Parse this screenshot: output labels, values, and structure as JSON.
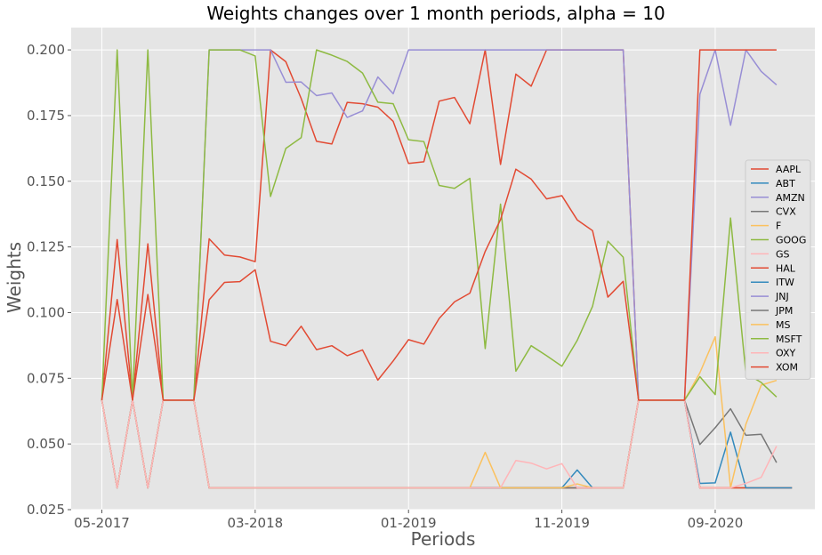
{
  "chart_data": {
    "type": "line",
    "title": "Weights changes over 1 month periods, alpha = 10",
    "xlabel": "Periods",
    "ylabel": "Weights",
    "x_tick_labels": [
      "05-2017",
      "03-2018",
      "01-2019",
      "11-2019",
      "09-2020"
    ],
    "x_tick_positions": [
      0,
      10,
      20,
      30,
      40
    ],
    "xlim": [
      -2,
      46.5
    ],
    "ylim": [
      0.025,
      0.2085
    ],
    "y_ticks": [
      0.025,
      0.05,
      0.075,
      0.1,
      0.125,
      0.15,
      0.175,
      0.2
    ],
    "y_tick_labels": [
      "0.025",
      "0.050",
      "0.075",
      "0.100",
      "0.125",
      "0.150",
      "0.175",
      "0.200"
    ],
    "grid": true,
    "legend_position": "center-right",
    "background": "#e5e5e5",
    "x": [
      0,
      1,
      2,
      3,
      4,
      5,
      6,
      7,
      8,
      9,
      10,
      11,
      12,
      13,
      14,
      15,
      16,
      17,
      18,
      19,
      20,
      21,
      22,
      23,
      24,
      25,
      26,
      27,
      28,
      29,
      30,
      31,
      32,
      33,
      34,
      35,
      36,
      37,
      38,
      39,
      40,
      41,
      42,
      43,
      44,
      45
    ],
    "series": [
      {
        "name": "AAPL",
        "color": "#E24A33",
        "values": [
          0.0667,
          0.1278,
          0.0667,
          0.1262,
          0.0667,
          0.0667,
          0.0667,
          0.1281,
          0.1219,
          0.1212,
          0.1194,
          0.2,
          0.1955,
          0.1815,
          0.1652,
          0.1642,
          0.18,
          0.1795,
          0.1782,
          0.1728,
          0.1568,
          0.1574,
          0.1805,
          0.1819,
          0.1719,
          0.2,
          0.1564,
          0.1908,
          0.1862,
          0.2,
          0.2,
          0.2,
          0.2,
          0.2,
          0.2,
          0.0667,
          0.0667,
          0.0667,
          0.0667,
          0.0333,
          0.0333,
          0.0333,
          0.0333,
          0.0333,
          0.0333,
          0.0333
        ]
      },
      {
        "name": "ABT",
        "color": "#348ABD",
        "values": [
          0.0667,
          0.0333,
          0.0667,
          0.0333,
          0.0667,
          0.0667,
          0.0667,
          0.0333,
          0.0333,
          0.0333,
          0.0333,
          0.0333,
          0.0333,
          0.0333,
          0.0333,
          0.0333,
          0.0333,
          0.0333,
          0.0333,
          0.0333,
          0.0333,
          0.0333,
          0.0333,
          0.0333,
          0.0333,
          0.0333,
          0.0333,
          0.0333,
          0.0333,
          0.0333,
          0.0333,
          0.0333,
          0.0333,
          0.0333,
          0.0333,
          0.0667,
          0.0667,
          0.0667,
          0.0667,
          0.0333,
          0.0333,
          0.0333,
          0.0333,
          0.0333,
          0.0333,
          0.0333
        ]
      },
      {
        "name": "AMZN",
        "color": "#988ED5",
        "values": [
          0.0667,
          0.0333,
          0.0667,
          0.0333,
          0.0667,
          0.0667,
          0.0667,
          0.0333,
          0.0333,
          0.0333,
          0.0333,
          0.0333,
          0.0333,
          0.0333,
          0.0333,
          0.0333,
          0.0333,
          0.0333,
          0.0333,
          0.0333,
          0.0333,
          0.0333,
          0.0333,
          0.0333,
          0.0333,
          0.0333,
          0.0333,
          0.0333,
          0.0333,
          0.0333,
          0.0333,
          0.0333,
          0.0333,
          0.0333,
          0.0333,
          0.0667,
          0.0667,
          0.0667,
          0.0667,
          0.0333,
          0.0333,
          0.0333,
          0.0333,
          0.0333,
          0.0333,
          0.0333
        ]
      },
      {
        "name": "CVX",
        "color": "#777777",
        "values": [
          0.0667,
          0.0333,
          0.0667,
          0.0333,
          0.0667,
          0.0667,
          0.0667,
          0.0333,
          0.0333,
          0.0333,
          0.0333,
          0.0333,
          0.0333,
          0.0333,
          0.0333,
          0.0333,
          0.0333,
          0.0333,
          0.0333,
          0.0333,
          0.0333,
          0.0333,
          0.0333,
          0.0333,
          0.0333,
          0.0333,
          0.0333,
          0.0333,
          0.0333,
          0.0333,
          0.0333,
          0.0333,
          0.0333,
          0.0333,
          0.0333,
          0.0667,
          0.0667,
          0.0667,
          0.0667,
          0.0333,
          0.0333,
          0.0333,
          0.0333,
          0.0333,
          0.0333,
          0.0333
        ]
      },
      {
        "name": "F",
        "color": "#FBC15E",
        "values": [
          0.0667,
          0.0333,
          0.0667,
          0.0333,
          0.0667,
          0.0667,
          0.0667,
          0.0333,
          0.0333,
          0.0333,
          0.0333,
          0.0333,
          0.0333,
          0.0333,
          0.0333,
          0.0333,
          0.0333,
          0.0333,
          0.0333,
          0.0333,
          0.0333,
          0.0333,
          0.0333,
          0.0333,
          0.0333,
          0.0333,
          0.0333,
          0.0333,
          0.0333,
          0.0333,
          0.0333,
          0.0333,
          0.0333,
          0.0333,
          0.0333,
          0.0667,
          0.0667,
          0.0667,
          0.0667,
          0.0333,
          0.0333,
          0.0333,
          0.0333,
          0.0333,
          0.0333,
          0.0333
        ]
      },
      {
        "name": "GOOG",
        "color": "#8EBA42",
        "values": [
          0.0667,
          0.0333,
          0.0667,
          0.0333,
          0.0667,
          0.0667,
          0.0667,
          0.0333,
          0.0333,
          0.0333,
          0.0333,
          0.0333,
          0.0333,
          0.0333,
          0.0333,
          0.0333,
          0.0333,
          0.0333,
          0.0333,
          0.0333,
          0.0333,
          0.0333,
          0.0333,
          0.0333,
          0.0333,
          0.0333,
          0.0333,
          0.0333,
          0.0333,
          0.0333,
          0.0333,
          0.0333,
          0.0333,
          0.0333,
          0.0333,
          0.0667,
          0.0667,
          0.0667,
          0.0667,
          0.0333,
          0.0333,
          0.0333,
          0.0333,
          0.0333,
          0.0333,
          0.0333
        ]
      },
      {
        "name": "GS",
        "color": "#FFB5B8",
        "values": [
          0.0667,
          0.0333,
          0.0667,
          0.0333,
          0.0667,
          0.0667,
          0.0667,
          0.0333,
          0.0333,
          0.0333,
          0.0333,
          0.0333,
          0.0333,
          0.0333,
          0.0333,
          0.0333,
          0.0333,
          0.0333,
          0.0333,
          0.0333,
          0.0333,
          0.0333,
          0.0333,
          0.0333,
          0.0333,
          0.0333,
          0.0333,
          0.0333,
          0.0333,
          0.0333,
          0.0333,
          0.0333,
          0.0333,
          0.0333,
          0.0333,
          0.0667,
          0.0667,
          0.0667,
          0.0667,
          0.0333,
          0.0333,
          0.0333,
          0.0333,
          0.0333,
          0.0333,
          0.0333
        ]
      },
      {
        "name": "HAL",
        "color": "#E24A33",
        "values": [
          0.0667,
          0.0333,
          0.0667,
          0.0333,
          0.0667,
          0.0667,
          0.0667,
          0.0333,
          0.0333,
          0.0333,
          0.0333,
          0.0333,
          0.0333,
          0.0333,
          0.0333,
          0.0333,
          0.0333,
          0.0333,
          0.0333,
          0.0333,
          0.0333,
          0.0333,
          0.0333,
          0.0333,
          0.0333,
          0.0333,
          0.0333,
          0.0333,
          0.0333,
          0.0333,
          0.0333,
          0.0333,
          0.0333,
          0.0333,
          0.0333,
          0.0667,
          0.0667,
          0.0667,
          0.0667,
          0.0333,
          0.0333,
          0.0333,
          0.0333,
          0.0333,
          0.0333,
          0.0333
        ]
      },
      {
        "name": "ITW",
        "color": "#348ABD",
        "values": [
          0.0667,
          0.0333,
          0.0667,
          0.0333,
          0.0667,
          0.0667,
          0.0667,
          0.0333,
          0.0333,
          0.0333,
          0.0333,
          0.0333,
          0.0333,
          0.0333,
          0.0333,
          0.0333,
          0.0333,
          0.0333,
          0.0333,
          0.0333,
          0.0333,
          0.0333,
          0.0333,
          0.0333,
          0.0333,
          0.0333,
          0.0333,
          0.0333,
          0.0333,
          0.0333,
          0.0333,
          0.0401,
          0.0333,
          0.0333,
          0.0333,
          0.0667,
          0.0667,
          0.0667,
          0.0667,
          0.035,
          0.0352,
          0.0545,
          0.0333,
          0.0333,
          0.0333,
          0.0333
        ]
      },
      {
        "name": "JNJ",
        "color": "#988ED5",
        "values": [
          0.0667,
          0.0333,
          0.0667,
          0.0333,
          0.0667,
          0.0667,
          0.0667,
          0.2,
          0.2,
          0.2,
          0.2,
          0.2,
          0.1877,
          0.1878,
          0.1826,
          0.1836,
          0.1743,
          0.1768,
          0.1897,
          0.1833,
          0.2,
          0.2,
          0.2,
          0.2,
          0.2,
          0.2,
          0.2,
          0.2,
          0.2,
          0.2,
          0.2,
          0.2,
          0.2,
          0.2,
          0.2,
          0.0667,
          0.0667,
          0.0667,
          0.0667,
          0.1831,
          0.2,
          0.1713,
          0.2,
          0.1918,
          0.1867,
          null
        ]
      },
      {
        "name": "JPM",
        "color": "#777777",
        "values": [
          0.0667,
          0.0333,
          0.0667,
          0.0333,
          0.0667,
          0.0667,
          0.0667,
          0.0333,
          0.0333,
          0.0333,
          0.0333,
          0.0333,
          0.0333,
          0.0333,
          0.0333,
          0.0333,
          0.0333,
          0.0333,
          0.0333,
          0.0333,
          0.0333,
          0.0333,
          0.0333,
          0.0333,
          0.0333,
          0.0333,
          0.0333,
          0.0333,
          0.0333,
          0.0333,
          0.0333,
          0.0333,
          0.0333,
          0.0333,
          0.0333,
          0.0667,
          0.0667,
          0.0667,
          0.0667,
          0.0498,
          0.0562,
          0.0634,
          0.0533,
          0.0537,
          0.0429,
          null
        ]
      },
      {
        "name": "MS",
        "color": "#FBC15E",
        "values": [
          0.0667,
          0.0333,
          0.0667,
          0.0333,
          0.0667,
          0.0667,
          0.0667,
          0.0333,
          0.0333,
          0.0333,
          0.0333,
          0.0333,
          0.0333,
          0.0333,
          0.0333,
          0.0333,
          0.0333,
          0.0333,
          0.0333,
          0.0333,
          0.0333,
          0.0333,
          0.0333,
          0.0333,
          0.0333,
          0.0468,
          0.0333,
          0.0333,
          0.0333,
          0.0333,
          0.0333,
          0.0348,
          0.0333,
          0.0333,
          0.0333,
          0.0667,
          0.0667,
          0.0667,
          0.0667,
          0.0771,
          0.0908,
          0.0333,
          0.0575,
          0.0724,
          0.0742,
          null
        ]
      },
      {
        "name": "MSFT",
        "color": "#8EBA42",
        "values": [
          0.0667,
          0.2,
          0.0667,
          0.2,
          0.0667,
          0.0667,
          0.0667,
          0.2,
          0.2,
          0.2,
          0.1977,
          0.1442,
          0.1625,
          0.1666,
          0.2,
          0.198,
          0.1956,
          0.1912,
          0.1801,
          0.1795,
          0.1658,
          0.1651,
          0.1484,
          0.1473,
          0.1511,
          0.0863,
          0.1413,
          0.0777,
          0.0874,
          0.0836,
          0.0796,
          0.0894,
          0.1024,
          0.1272,
          0.1211,
          0.0667,
          0.0667,
          0.0667,
          0.0667,
          0.0756,
          0.0688,
          0.136,
          0.0769,
          0.0734,
          0.0679,
          null
        ]
      },
      {
        "name": "OXY",
        "color": "#FFB5B8",
        "values": [
          0.0667,
          0.0333,
          0.0667,
          0.0333,
          0.0667,
          0.0667,
          0.0667,
          0.0333,
          0.0333,
          0.0333,
          0.0333,
          0.0333,
          0.0333,
          0.0333,
          0.0333,
          0.0333,
          0.0333,
          0.0333,
          0.0333,
          0.0333,
          0.0333,
          0.0333,
          0.0333,
          0.0333,
          0.0333,
          0.0333,
          0.0333,
          0.0437,
          0.0427,
          0.0405,
          0.0425,
          0.0333,
          0.0333,
          0.0333,
          0.0333,
          0.0667,
          0.0667,
          0.0667,
          0.0667,
          0.0333,
          0.0333,
          0.0333,
          0.035,
          0.0373,
          0.0492,
          null
        ]
      },
      {
        "name": "XOM",
        "color": "#E24A33",
        "values": [
          0.0667,
          0.105,
          0.0667,
          0.1069,
          0.0667,
          0.0667,
          0.0667,
          0.1049,
          0.1115,
          0.1118,
          0.1163,
          0.0891,
          0.0874,
          0.0948,
          0.0859,
          0.0874,
          0.0836,
          0.0858,
          0.0743,
          0.0816,
          0.0897,
          0.088,
          0.0978,
          0.1041,
          0.1074,
          0.1233,
          0.1354,
          0.1546,
          0.1508,
          0.1433,
          0.1445,
          0.1353,
          0.1312,
          0.1059,
          0.1119,
          0.0667,
          0.0667,
          0.0667,
          0.0667,
          0.2,
          0.2,
          0.2,
          0.2,
          0.2,
          0.2,
          null
        ]
      }
    ]
  }
}
